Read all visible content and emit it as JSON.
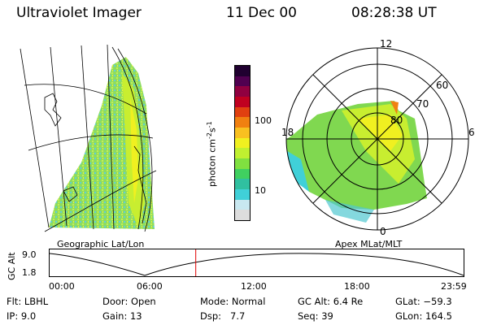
{
  "header": {
    "title": "Ultraviolet Imager",
    "date": "11 Dec 00",
    "time": "08:28:38 UT"
  },
  "left_panel": {
    "caption": "Geographic Lat/Lon"
  },
  "colorbar": {
    "axis_label": "photon cm",
    "axis_sup1": "-2",
    "axis_mid": "s",
    "axis_sup2": "-1",
    "tick_100": "100",
    "tick_10": "10",
    "colors": [
      "#dddddd",
      "#c8e8f0",
      "#40d0d8",
      "#30c0a0",
      "#40d060",
      "#80e040",
      "#c0f030",
      "#f0f020",
      "#f8c020",
      "#f08010",
      "#e04010",
      "#c00020",
      "#900040",
      "#500050",
      "#200030"
    ]
  },
  "polar_panel": {
    "caption": "Apex MLat/MLT",
    "mlt_12": "12",
    "mlt_18": "18",
    "mlt_6": "6",
    "mlt_0": "0",
    "lat_60": "60",
    "lat_70": "70",
    "lat_80": "80"
  },
  "timeline": {
    "ylabel": "GC Alt",
    "y_top": "9.0",
    "y_bottom": "1.8",
    "ticks": [
      "00:00",
      "06:00",
      "12:00",
      "18:00",
      "23:59"
    ],
    "current_time_fraction": 0.353
  },
  "info": {
    "flt_label": "Flt:",
    "flt_value": "LBHL",
    "ip_label": "IP:",
    "ip_value": "9.0",
    "door_label": "Door:",
    "door_value": "Open",
    "gain_label": "Gain:",
    "gain_value": "13",
    "mode_label": "Mode:",
    "mode_value": "Normal",
    "dsp_label": "Dsp:",
    "dsp_value": "7.7",
    "gcalt_label": "GC Alt:",
    "gcalt_value": "6.4 Re",
    "seq_label": "Seq:",
    "seq_value": "39",
    "glat_label": "GLat:",
    "glat_value": "−59.3",
    "glon_label": "GLon:",
    "glon_value": "164.5"
  }
}
